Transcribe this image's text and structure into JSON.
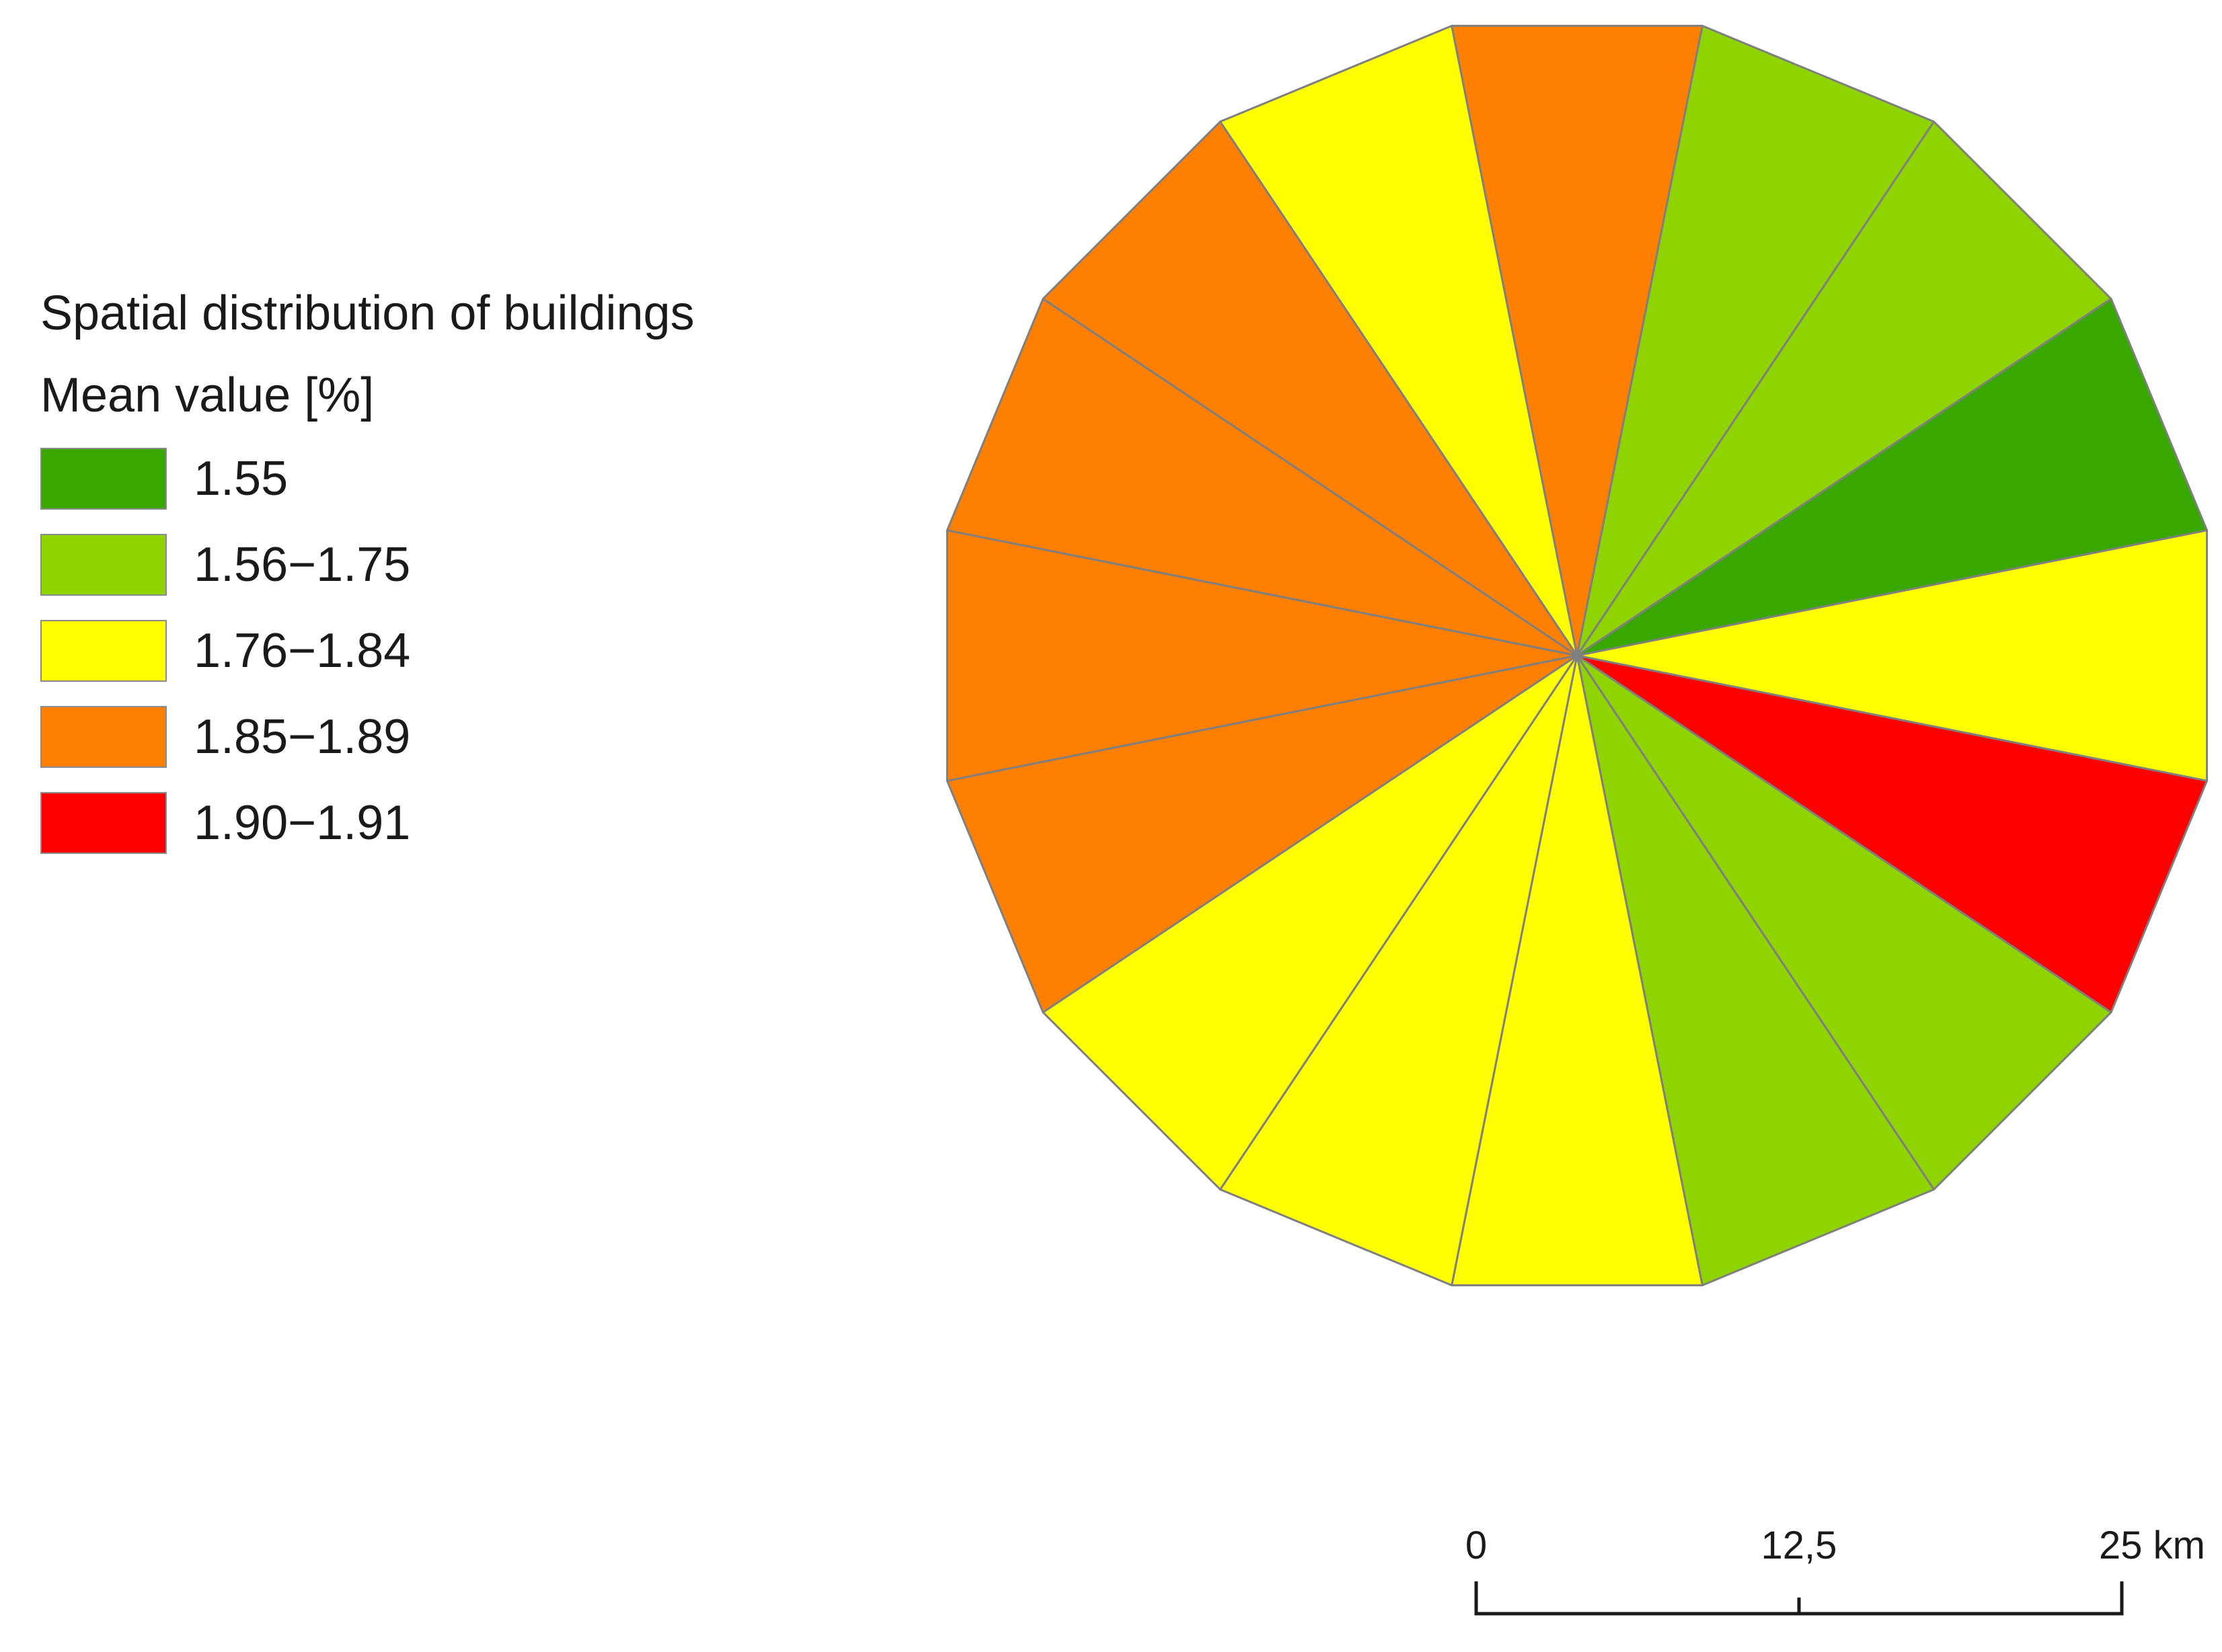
{
  "legend": {
    "title": "Spatial distribution of buildings",
    "subtitle": "Mean value [%]",
    "classes": [
      {
        "label": "1.55",
        "color": "#38a800"
      },
      {
        "label": "1.56−1.75",
        "color": "#8fd400"
      },
      {
        "label": "1.76−1.84",
        "color": "#ffff00"
      },
      {
        "label": "1.85−1.89",
        "color": "#ff7f00"
      },
      {
        "label": "1.90−1.91",
        "color": "#ff0000"
      }
    ]
  },
  "sectors": [
    {
      "class": 2
    },
    {
      "class": 4
    },
    {
      "class": 1
    },
    {
      "class": 1
    },
    {
      "class": 2
    },
    {
      "class": 2
    },
    {
      "class": 2
    },
    {
      "class": 3
    },
    {
      "class": 3
    },
    {
      "class": 3
    },
    {
      "class": 3
    },
    {
      "class": 2
    },
    {
      "class": 3
    },
    {
      "class": 1
    },
    {
      "class": 1
    },
    {
      "class": 0
    }
  ],
  "scalebar": {
    "ticks": [
      "0",
      "12,5",
      "25 km"
    ]
  },
  "colors": {
    "outline": "#7f7f7f",
    "scalebar": "#1a1a1a"
  }
}
